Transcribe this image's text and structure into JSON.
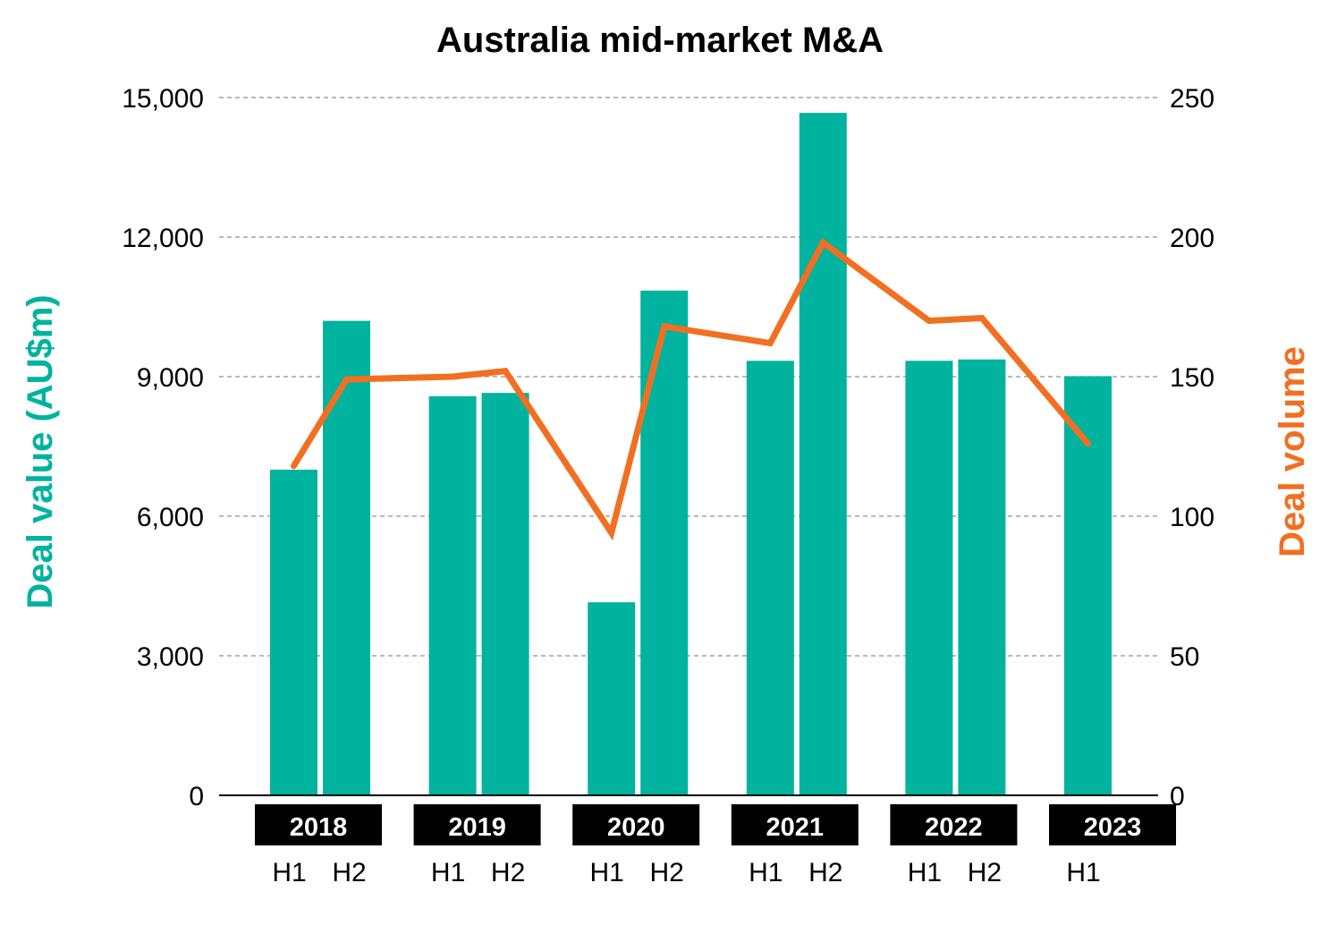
{
  "chart_data": {
    "type": "bar",
    "title": "Australia mid-market M&A",
    "xlabel": "",
    "ylabel": "Deal value (AU$m)",
    "ylabel_right": "Deal volume",
    "ylim": [
      0,
      15000
    ],
    "ylim_right": [
      0,
      250
    ],
    "yticks": [
      "0",
      "3,000",
      "6,000",
      "9,000",
      "12,000",
      "15,000"
    ],
    "yticks_values": [
      0,
      3000,
      6000,
      9000,
      12000,
      15000
    ],
    "yticks_right": [
      "0",
      "50",
      "100",
      "150",
      "200",
      "250"
    ],
    "yticks_right_values": [
      0,
      50,
      100,
      150,
      200,
      250
    ],
    "grid": true,
    "groups": [
      {
        "year": "2018",
        "halves": [
          "H1",
          "H2"
        ]
      },
      {
        "year": "2019",
        "halves": [
          "H1",
          "H2"
        ]
      },
      {
        "year": "2020",
        "halves": [
          "H1",
          "H2"
        ]
      },
      {
        "year": "2021",
        "halves": [
          "H1",
          "H2"
        ]
      },
      {
        "year": "2022",
        "halves": [
          "H1",
          "H2"
        ]
      },
      {
        "year": "2023",
        "halves": [
          "H1"
        ]
      }
    ],
    "categories": [
      "2018 H1",
      "2018 H2",
      "2019 H1",
      "2019 H2",
      "2020 H1",
      "2020 H2",
      "2021 H1",
      "2021 H2",
      "2022 H1",
      "2022 H2",
      "2023 H1"
    ],
    "series": [
      {
        "name": "Deal value (AU$m)",
        "type": "bar",
        "axis": "left",
        "color": "#00b39f",
        "values": [
          7000,
          10200,
          8580,
          8650,
          4150,
          10850,
          9340,
          14670,
          9340,
          9370,
          9010
        ]
      },
      {
        "name": "Deal volume",
        "type": "line",
        "axis": "right",
        "color": "#f26f21",
        "values": [
          118,
          149,
          150,
          152,
          94,
          168,
          162,
          198,
          170,
          171,
          126
        ]
      }
    ]
  }
}
